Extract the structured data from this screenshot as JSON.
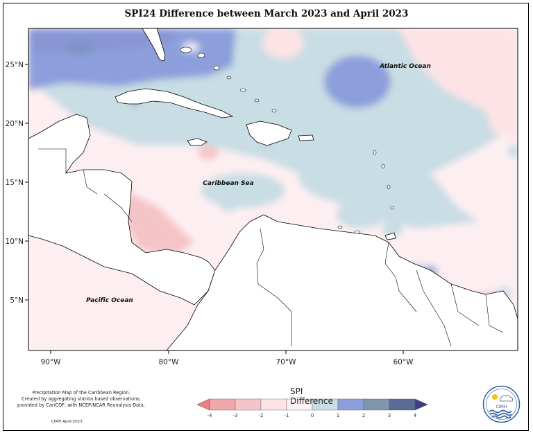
{
  "title": "SPI24 Difference between March 2023 and April 2023",
  "map": {
    "x_ticks": [
      "90°W",
      "80°W",
      "70°W",
      "60°W"
    ],
    "y_ticks": [
      "25°N",
      "20°N",
      "15°N",
      "10°N",
      "5°N"
    ],
    "places": [
      "Atlantic Ocean",
      "Caribbean Sea",
      "Pacific Ocean"
    ],
    "extent": {
      "lon": [
        -92,
        -50.5
      ],
      "lat": [
        0.5,
        28
      ]
    }
  },
  "legend": {
    "title": "SPI Difference",
    "ticks": [
      "-4",
      "-3",
      "-2",
      "-1",
      "0",
      "1",
      "2",
      "3",
      "4"
    ],
    "colors": [
      "#f08080",
      "#f2a7ab",
      "#f4c4c7",
      "#fde3e6",
      "#fdf3f4",
      "#c9dde4",
      "#8c9fdc",
      "#7f96ae",
      "#5b6a96",
      "#3f3f84"
    ]
  },
  "footnote": {
    "lines": [
      "Precipitation Map of the Caribbean Region.",
      "Created by aggregating station based observations,",
      "provided by CariCOF, with NCEP/NCAR Reanalysis Data."
    ],
    "credit": "CIMH April-2023"
  },
  "logo": {
    "text": "CIMH"
  }
}
